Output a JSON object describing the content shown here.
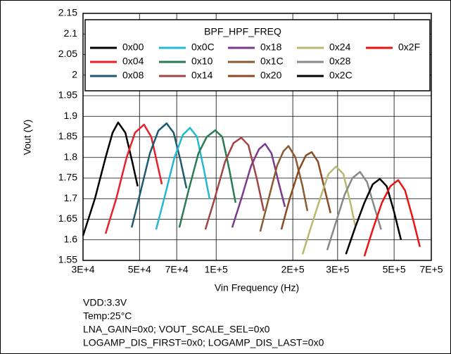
{
  "chart_data": {
    "type": "line",
    "xlabel": "Vin Frequency (Hz)",
    "ylabel": "Vout (V)",
    "xscale": "log",
    "grid": true,
    "legend_title": "BPF_HPF_FREQ",
    "legend_position": "top",
    "xlim": [
      30000,
      700000
    ],
    "xticks": [
      {
        "value": 30000,
        "label": "3E+4"
      },
      {
        "value": 50000,
        "label": "5E+4"
      },
      {
        "value": 70000,
        "label": "7E+4"
      },
      {
        "value": 100000,
        "label": "1E+5"
      },
      {
        "value": 200000,
        "label": "2E+5"
      },
      {
        "value": 300000,
        "label": "3E+5"
      },
      {
        "value": 500000,
        "label": "5E+5"
      },
      {
        "value": 700000,
        "label": "7E+5"
      }
    ],
    "ylim": [
      1.55,
      2.15
    ],
    "yticks": [
      1.55,
      1.6,
      1.65,
      1.7,
      1.75,
      1.8,
      1.85,
      1.9,
      1.95,
      2,
      2.05,
      2.1,
      2.15
    ],
    "annotations": [
      "VDD:3.3V",
      "Temp:25°C",
      "LNA_GAIN=0x0; VOUT_SCALE_SEL=0x0",
      "LOGAMP_DIS_FIRST=0x0; LOGAMP_DIS_LAST=0x0"
    ],
    "series": [
      {
        "name": "0x00",
        "color": "#000000",
        "x": [
          30000,
          33400,
          36800,
          39200,
          41200,
          44000,
          46800,
          49200
        ],
        "values": [
          1.61,
          1.7,
          1.8,
          1.86,
          1.885,
          1.86,
          1.79,
          1.73
        ]
      },
      {
        "name": "0x04",
        "color": "#e8202a",
        "x": [
          36800,
          40500,
          44500,
          48000,
          52100,
          55600,
          58500,
          61200
        ],
        "values": [
          1.615,
          1.7,
          1.8,
          1.86,
          1.88,
          1.85,
          1.79,
          1.735
        ]
      },
      {
        "name": "0x08",
        "color": "#1c5a70",
        "x": [
          46600,
          50600,
          54900,
          59300,
          63900,
          68100,
          72600,
          76500
        ],
        "values": [
          1.63,
          1.72,
          1.81,
          1.865,
          1.883,
          1.86,
          1.79,
          1.725
        ]
      },
      {
        "name": "0x0C",
        "color": "#22b8d2",
        "x": [
          58100,
          63100,
          68600,
          74000,
          78900,
          84100,
          89600,
          94200
        ],
        "values": [
          1.625,
          1.71,
          1.8,
          1.855,
          1.872,
          1.85,
          1.77,
          1.7
        ]
      },
      {
        "name": "0x10",
        "color": "#2a7a52",
        "x": [
          71700,
          77900,
          85200,
          91900,
          99200,
          105700,
          112700,
          119200
        ],
        "values": [
          1.63,
          1.72,
          1.81,
          1.85,
          1.866,
          1.85,
          1.77,
          1.69
        ]
      },
      {
        "name": "0x14",
        "color": "#a04444",
        "x": [
          90700,
          98700,
          108400,
          117000,
          125600,
          133800,
          144300,
          153800
        ],
        "values": [
          1.625,
          1.7,
          1.79,
          1.835,
          1.848,
          1.83,
          1.75,
          1.67
        ]
      },
      {
        "name": "0x18",
        "color": "#7a3a8c",
        "x": [
          115600,
          125600,
          137200,
          147300,
          155700,
          165000,
          175800,
          186300
        ],
        "values": [
          1.63,
          1.7,
          1.78,
          1.82,
          1.833,
          1.81,
          1.74,
          1.68
        ]
      },
      {
        "name": "0x1C",
        "color": "#8a5a30",
        "x": [
          149000,
          160800,
          173500,
          183700,
          192300,
          204900,
          218400,
          228200
        ],
        "values": [
          1.62,
          1.7,
          1.78,
          1.815,
          1.828,
          1.8,
          1.73,
          1.67
        ]
      },
      {
        "name": "0x20",
        "color": "#8c4a22",
        "x": [
          180400,
          194600,
          211400,
          225300,
          237300,
          251200,
          267600,
          281500
        ],
        "values": [
          1.625,
          1.7,
          1.77,
          1.805,
          1.813,
          1.79,
          1.72,
          1.665
        ]
      },
      {
        "name": "0x24",
        "color": "#b8b872",
        "x": [
          218400,
          235500,
          255900,
          276300,
          295900,
          315700,
          336700,
          351700
        ],
        "values": [
          1.565,
          1.63,
          1.7,
          1.76,
          1.778,
          1.76,
          1.69,
          1.635
        ]
      },
      {
        "name": "0x28",
        "color": "#888888",
        "x": [
          273000,
          294600,
          319900,
          342900,
          367500,
          391900,
          418000,
          444800
        ],
        "values": [
          1.575,
          1.64,
          1.71,
          1.75,
          1.765,
          1.74,
          1.68,
          1.625
        ]
      },
      {
        "name": "0x2C",
        "color": "#000000",
        "x": [
          323600,
          351700,
          382200,
          412200,
          439500,
          468000,
          499000,
          532200
        ],
        "values": [
          1.565,
          1.63,
          1.69,
          1.735,
          1.748,
          1.73,
          1.67,
          1.6
        ]
      },
      {
        "name": "0x2F",
        "color": "#ee1111",
        "x": [
          382200,
          412200,
          447900,
          483300,
          518900,
          552200,
          593100,
          631400
        ],
        "values": [
          1.56,
          1.625,
          1.69,
          1.73,
          1.745,
          1.72,
          1.65,
          1.583
        ]
      }
    ]
  }
}
